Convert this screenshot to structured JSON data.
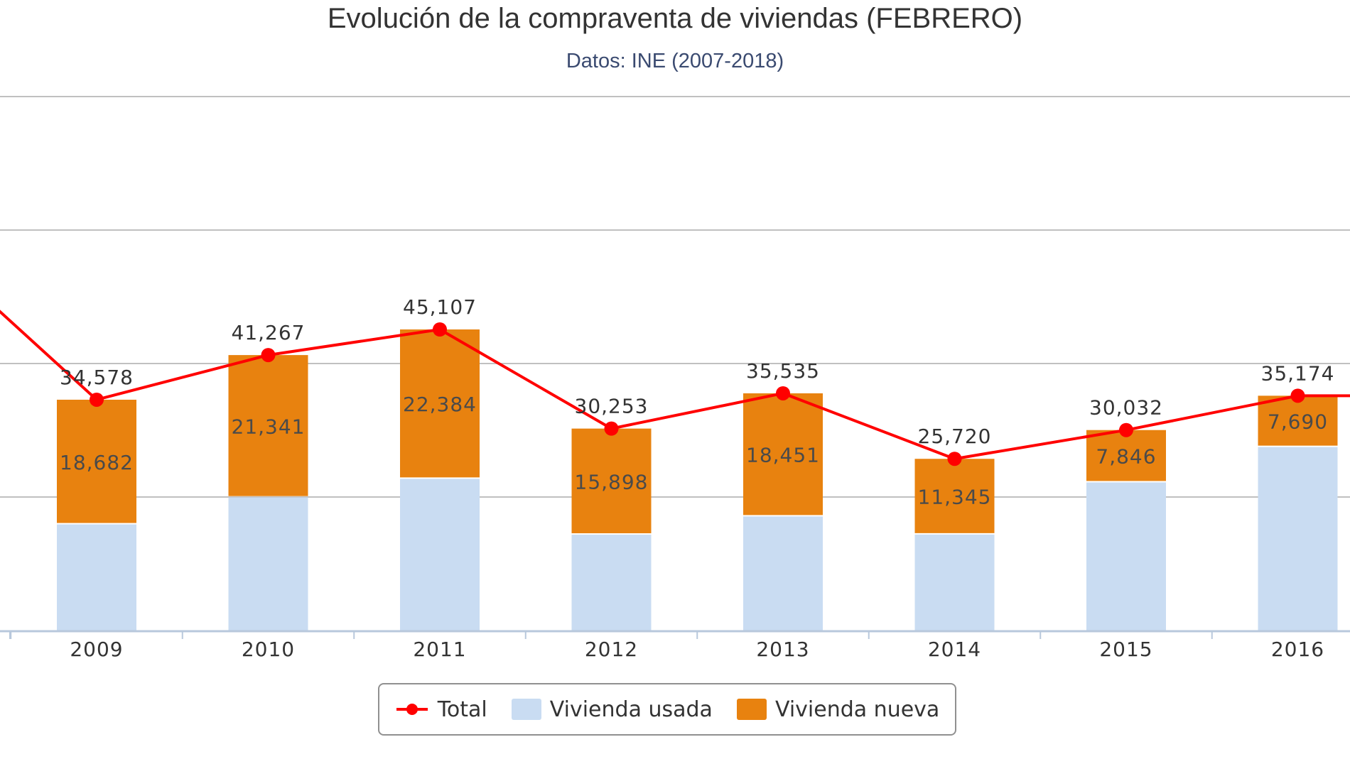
{
  "chart_data": {
    "type": "bar",
    "stacked": true,
    "title": "Evolución de la compraventa de viviendas (FEBRERO)",
    "subtitle": "Datos: INE (2007-2018)",
    "categories": [
      "2009",
      "2010",
      "2011",
      "2012",
      "2013",
      "2014",
      "2015",
      "2016"
    ],
    "series": [
      {
        "name": "Vivienda usada",
        "type": "bar",
        "color": "#c9dcf2",
        "values": [
          15896,
          19926,
          22723,
          14355,
          17084,
          14375,
          22186,
          27484
        ]
      },
      {
        "name": "Vivienda nueva",
        "type": "bar",
        "color": "#e8820f",
        "values": [
          18682,
          21341,
          22384,
          15898,
          18451,
          11345,
          7846,
          7690
        ],
        "labels": [
          "18,682",
          "21,341",
          "22,384",
          "15,898",
          "18,451",
          "11,345",
          "7,846",
          "7,690"
        ]
      },
      {
        "name": "Total",
        "type": "line",
        "color": "#ff0000",
        "values": [
          34578,
          41267,
          45107,
          30253,
          35535,
          25720,
          30032,
          35174
        ],
        "labels": [
          "34,578",
          "41,267",
          "45,107",
          "30,253",
          "35,535",
          "25,720",
          "30,032",
          "35,174"
        ]
      }
    ],
    "offscreen_points": {
      "total_before_2009": 58000,
      "total_after_2016": 35174
    },
    "ylim": [
      0,
      80000
    ],
    "gridlines": [
      0,
      20000,
      40000,
      60000,
      80000
    ],
    "grid": true,
    "legend_position": "bottom-center",
    "colors": {
      "grid": "#c0c0c0",
      "axis": "#b8c8dc",
      "tick_label": "#333333",
      "data_label": "#333333",
      "bar_label": "#4a4a4a"
    }
  }
}
